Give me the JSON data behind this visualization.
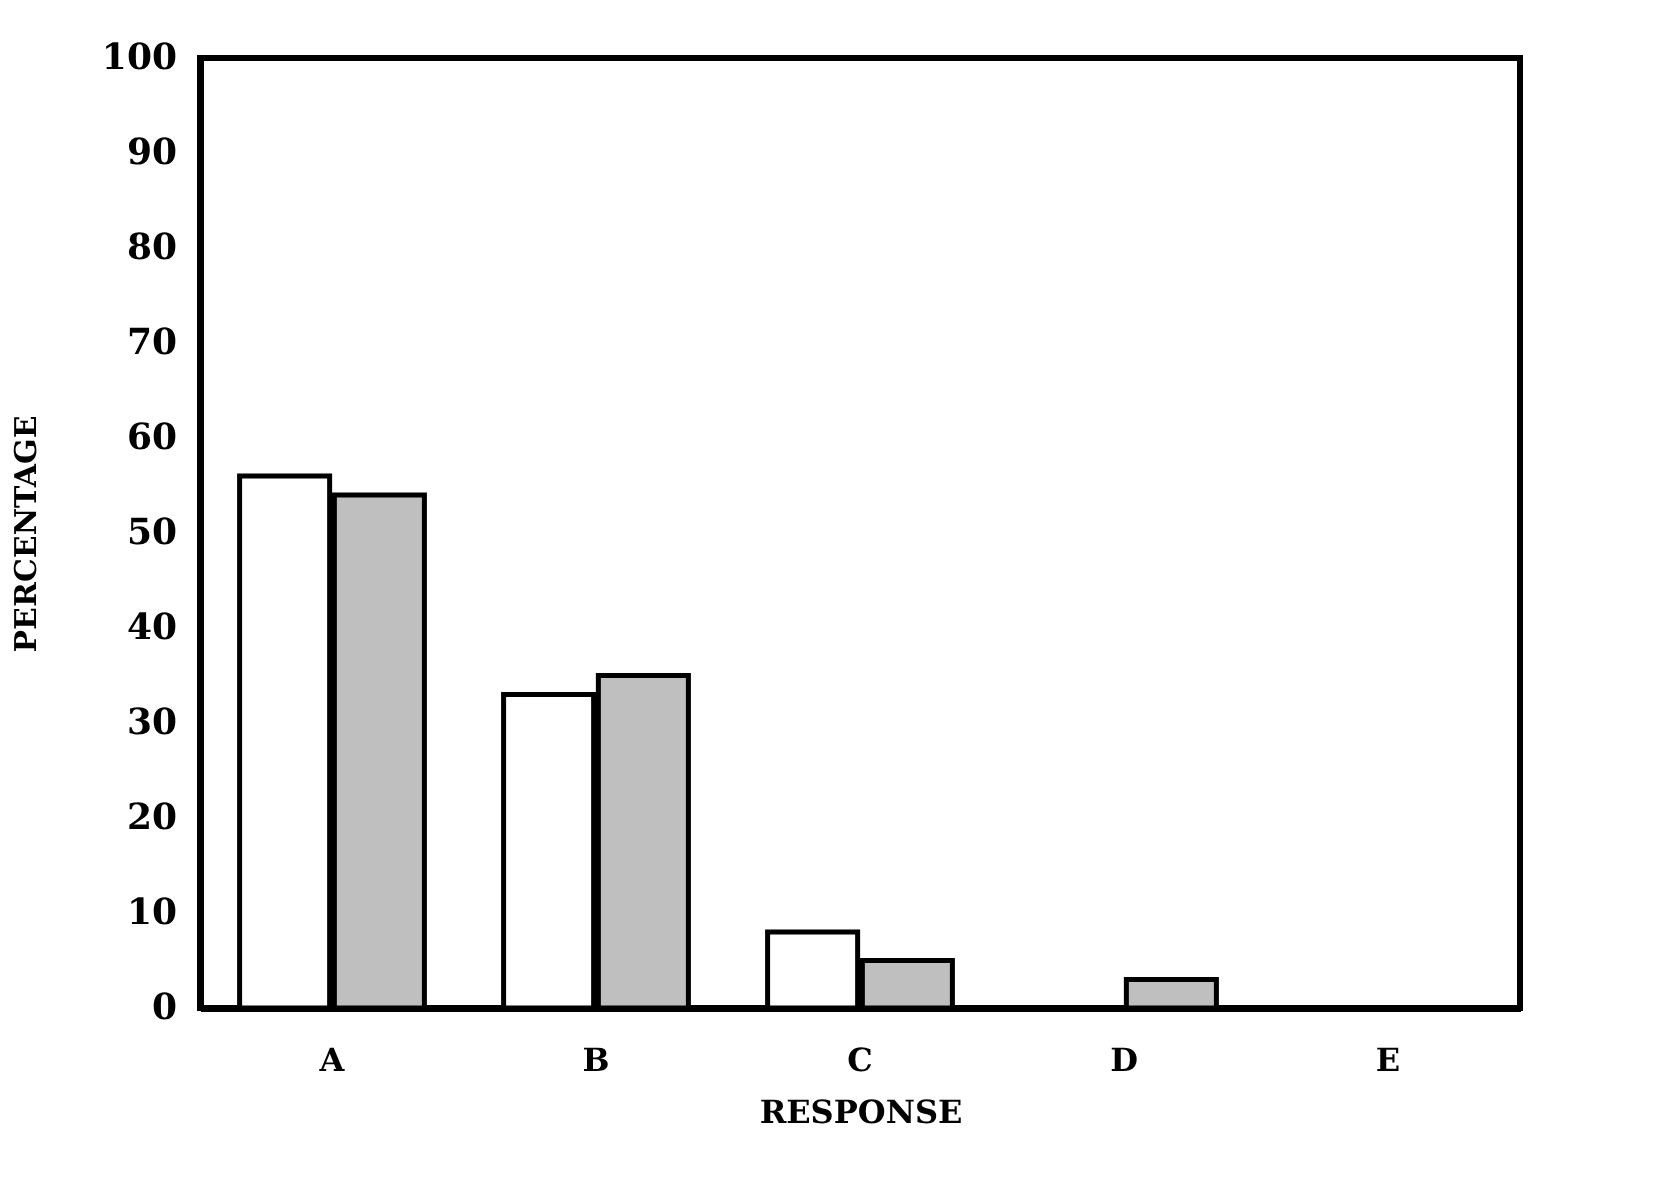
{
  "chart_data": {
    "type": "bar",
    "xlabel": "RESPONSE",
    "ylabel": "PERCENTAGE",
    "categories": [
      "A",
      "B",
      "C",
      "D",
      "E"
    ],
    "series": [
      {
        "color": "#ffffff",
        "values": [
          56,
          33,
          8,
          null,
          null
        ]
      },
      {
        "color": "#bfbfbf",
        "values": [
          54,
          35,
          5,
          3,
          null
        ]
      }
    ],
    "ylim": [
      0,
      100
    ],
    "yticks": [
      0,
      10,
      20,
      30,
      40,
      50,
      60,
      70,
      80,
      90,
      100
    ],
    "grid": false,
    "legend": false
  }
}
